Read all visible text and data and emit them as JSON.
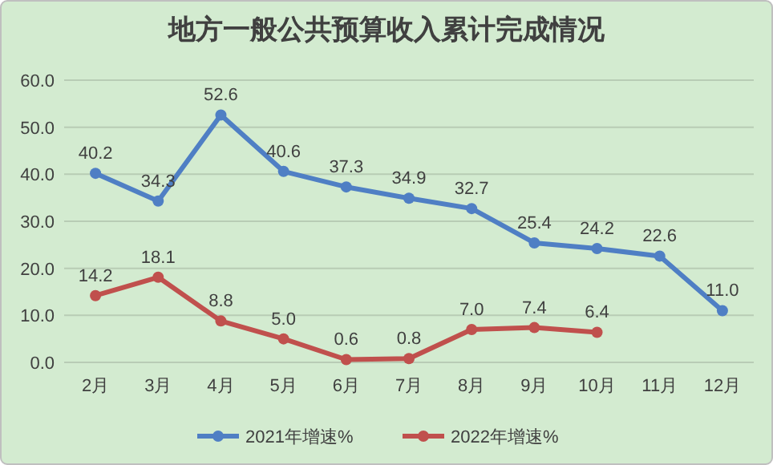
{
  "chart_data": {
    "type": "line",
    "title": "地方一般公共预算收入累计完成情况",
    "categories": [
      "2月",
      "3月",
      "4月",
      "5月",
      "6月",
      "7月",
      "8月",
      "9月",
      "10月",
      "11月",
      "12月"
    ],
    "series": [
      {
        "name": "2021年增速%",
        "color": "#4f7fc4",
        "values": [
          40.2,
          34.3,
          52.6,
          40.6,
          37.3,
          34.9,
          32.7,
          25.4,
          24.2,
          22.6,
          11.0
        ],
        "value_labels": [
          "40.2",
          "34.3",
          "52.6",
          "40.6",
          "37.3",
          "34.9",
          "32.7",
          "25.4",
          "24.2",
          "22.6",
          "11.0"
        ]
      },
      {
        "name": "2022年增速%",
        "color": "#c0504d",
        "values": [
          14.2,
          18.1,
          8.8,
          5.0,
          0.6,
          0.8,
          7.0,
          7.4,
          6.4,
          null,
          null
        ],
        "value_labels": [
          "14.2",
          "18.1",
          "8.8",
          "5.0",
          "0.6",
          "0.8",
          "7.0",
          "7.4",
          "6.4",
          null,
          null
        ]
      }
    ],
    "ylim": [
      0,
      60
    ],
    "yticks": [
      {
        "value": 0,
        "label": "0.0"
      },
      {
        "value": 10,
        "label": "10.0"
      },
      {
        "value": 20,
        "label": "20.0"
      },
      {
        "value": 30,
        "label": "30.0"
      },
      {
        "value": 40,
        "label": "40.0"
      },
      {
        "value": 50,
        "label": "50.0"
      },
      {
        "value": 60,
        "label": "60.0"
      }
    ],
    "grid": "y",
    "legend": "bottom",
    "marker": "circle",
    "line_style": "solid"
  }
}
